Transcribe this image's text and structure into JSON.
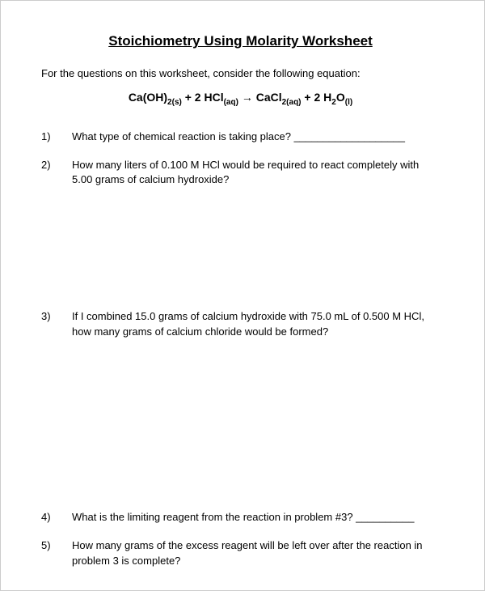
{
  "title": "Stoichiometry Using Molarity Worksheet",
  "intro": "For the questions on this worksheet, consider the following equation:",
  "equation": {
    "part1": "Ca(OH)",
    "sub1": "2(s)",
    "part2": " + 2 HCl",
    "sub2": "(aq)",
    "arrow": " → ",
    "part3": "CaCl",
    "sub3": "2(aq)",
    "part4": " + 2 H",
    "sub4": "2",
    "part5": "O",
    "sub5": "(l)"
  },
  "questions": {
    "q1": {
      "num": "1)",
      "text": "What type of chemical reaction is taking place? ___________________"
    },
    "q2": {
      "num": "2)",
      "text": "How many liters of 0.100 M HCl would be required to react completely with 5.00 grams of calcium hydroxide?"
    },
    "q3": {
      "num": "3)",
      "text": "If I combined 15.0 grams of calcium hydroxide with 75.0 mL of 0.500 M HCl, how many grams of calcium chloride would be formed?"
    },
    "q4": {
      "num": "4)",
      "text": "What is the limiting reagent from the reaction in problem #3? __________"
    },
    "q5": {
      "num": "5)",
      "text": "How many grams of the excess reagent will be left over after the reaction in problem 3 is complete?"
    }
  }
}
